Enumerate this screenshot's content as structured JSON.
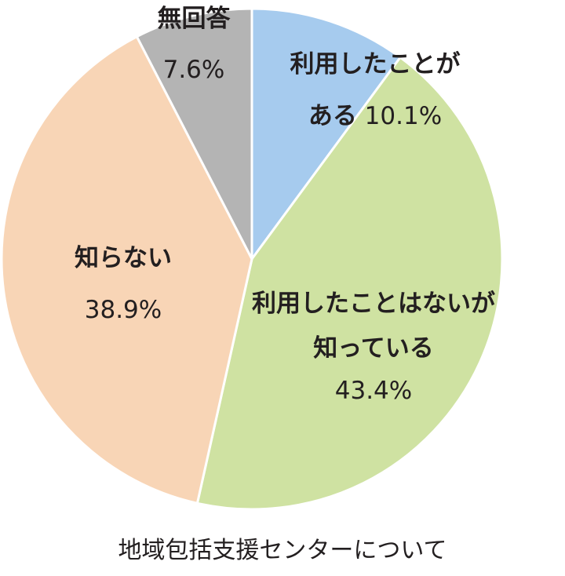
{
  "chart_data": {
    "type": "pie",
    "title": "",
    "caption": "地域包括支援センターについて",
    "start_angle_deg": 0,
    "direction": "clockwise",
    "unit": "%",
    "slices": [
      {
        "label_lines": [
          "利用したことが",
          "ある"
        ],
        "value": 10.1,
        "value_text": "10.1%",
        "color": "#a6cbee"
      },
      {
        "label_lines": [
          "利用したことはないが",
          "知っている"
        ],
        "value": 43.4,
        "value_text": "43.4%",
        "color": "#cfe2a2"
      },
      {
        "label_lines": [
          "知らない"
        ],
        "value": 38.9,
        "value_text": "38.9%",
        "color": "#f8d5b6"
      },
      {
        "label_lines": [
          "無回答"
        ],
        "value": 7.6,
        "value_text": "7.6%",
        "color": "#b4b4b4"
      }
    ]
  }
}
